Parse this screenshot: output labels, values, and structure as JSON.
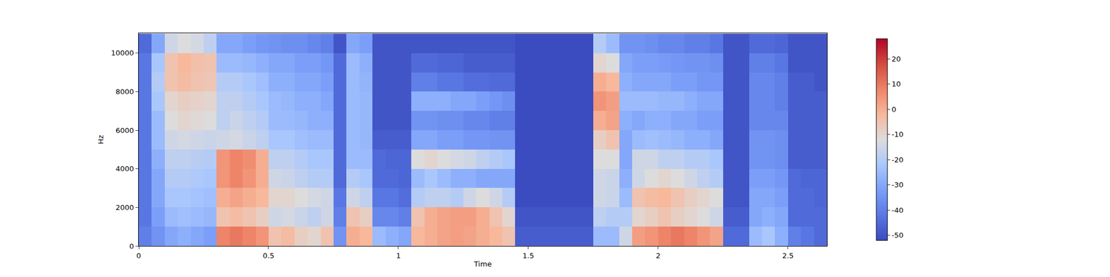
{
  "chart_data": {
    "type": "heatmap",
    "x_label": "Time",
    "y_label": "Hz",
    "xlim": [
      0,
      2.65
    ],
    "xticks": [
      0,
      0.5,
      1,
      1.5,
      2,
      2.5
    ],
    "ylim": [
      0,
      11025
    ],
    "yticks": [
      0,
      2000,
      4000,
      6000,
      8000,
      10000
    ],
    "colorbar": {
      "range": [
        -52,
        28
      ],
      "ticks": [
        -50,
        -40,
        -30,
        -20,
        -10,
        0,
        10,
        20
      ]
    },
    "x": [
      0.025,
      0.075,
      0.125,
      0.175,
      0.225,
      0.275,
      0.325,
      0.375,
      0.425,
      0.475,
      0.525,
      0.575,
      0.625,
      0.675,
      0.725,
      0.775,
      0.825,
      0.875,
      0.925,
      0.975,
      1.025,
      1.075,
      1.125,
      1.175,
      1.225,
      1.275,
      1.325,
      1.375,
      1.425,
      1.475,
      1.525,
      1.575,
      1.625,
      1.675,
      1.725,
      1.775,
      1.825,
      1.875,
      1.925,
      1.975,
      2.025,
      2.075,
      2.125,
      2.175,
      2.225,
      2.275,
      2.325,
      2.375,
      2.425,
      2.475,
      2.525,
      2.575,
      2.625
    ],
    "y": [
      500,
      1500,
      2500,
      3500,
      4500,
      5500,
      6500,
      7500,
      8500,
      9500,
      10500
    ],
    "z": [
      [
        -40,
        -35,
        -30,
        -28,
        -30,
        -32,
        8,
        10,
        8,
        5,
        -5,
        -3,
        -8,
        -10,
        -5,
        -35,
        0,
        -2,
        -25,
        -28,
        -30,
        -2,
        0,
        2,
        3,
        2,
        0,
        -2,
        -5,
        -48,
        -48,
        -48,
        -48,
        -48,
        -48,
        -25,
        -25,
        -15,
        3,
        5,
        8,
        10,
        8,
        5,
        2,
        -45,
        -45,
        -25,
        -22,
        -28,
        -40,
        -42,
        -45
      ],
      [
        -42,
        -32,
        -25,
        -24,
        -25,
        -26,
        -5,
        -3,
        -5,
        -8,
        -15,
        -14,
        -16,
        -18,
        -15,
        -40,
        -5,
        -8,
        -38,
        -38,
        -40,
        -5,
        0,
        2,
        3,
        3,
        0,
        -5,
        -10,
        -50,
        -50,
        -50,
        -50,
        -50,
        -50,
        -18,
        -20,
        -20,
        -10,
        -8,
        -5,
        -8,
        -10,
        -12,
        -15,
        -48,
        -48,
        -30,
        -28,
        -30,
        -45,
        -45,
        -45
      ],
      [
        -42,
        -30,
        -22,
        -22,
        -23,
        -24,
        0,
        2,
        0,
        -2,
        -10,
        -10,
        -12,
        -14,
        -15,
        -42,
        -15,
        -18,
        -42,
        -42,
        -44,
        -20,
        -18,
        -18,
        -20,
        -15,
        -12,
        -15,
        -20,
        -52,
        -52,
        -52,
        -52,
        -52,
        -52,
        -15,
        -16,
        -25,
        -5,
        -3,
        -2,
        -5,
        -8,
        -10,
        -12,
        -50,
        -50,
        -30,
        -30,
        -32,
        -45,
        -45,
        -46
      ],
      [
        -42,
        -30,
        -20,
        -20,
        -21,
        -22,
        5,
        8,
        5,
        0,
        -15,
        -16,
        -18,
        -20,
        -20,
        -45,
        -20,
        -22,
        -45,
        -45,
        -46,
        -25,
        -22,
        -25,
        -28,
        -28,
        -30,
        -30,
        -30,
        -52,
        -52,
        -52,
        -52,
        -52,
        -52,
        -15,
        -16,
        -28,
        -15,
        -12,
        -10,
        -12,
        -15,
        -18,
        -20,
        -50,
        -50,
        -32,
        -32,
        -34,
        -45,
        -46,
        -46
      ],
      [
        -42,
        -28,
        -18,
        -18,
        -19,
        -20,
        5,
        8,
        6,
        0,
        -18,
        -18,
        -20,
        -22,
        -22,
        -45,
        -25,
        -25,
        -45,
        -46,
        -46,
        -12,
        -10,
        -12,
        -14,
        -15,
        -18,
        -20,
        -22,
        -52,
        -52,
        -52,
        -52,
        -52,
        -52,
        -12,
        -12,
        -30,
        -15,
        -15,
        -18,
        -18,
        -20,
        -20,
        -22,
        -50,
        -50,
        -35,
        -35,
        -36,
        -48,
        -48,
        -48
      ],
      [
        -42,
        -25,
        -15,
        -14,
        -15,
        -16,
        -15,
        -14,
        -16,
        -18,
        -22,
        -22,
        -24,
        -25,
        -25,
        -45,
        -25,
        -26,
        -48,
        -48,
        -48,
        -30,
        -30,
        -32,
        -32,
        -34,
        -34,
        -35,
        -35,
        -52,
        -52,
        -52,
        -52,
        -52,
        -52,
        -8,
        -5,
        -30,
        -25,
        -24,
        -25,
        -26,
        -28,
        -28,
        -30,
        -50,
        -50,
        -35,
        -35,
        -36,
        -48,
        -48,
        -48
      ],
      [
        -42,
        -25,
        -12,
        -10,
        -11,
        -12,
        -18,
        -16,
        -18,
        -20,
        -25,
        -25,
        -26,
        -28,
        -28,
        -45,
        -25,
        -26,
        -50,
        -50,
        -50,
        -35,
        -35,
        -36,
        -36,
        -38,
        -38,
        -40,
        -40,
        -52,
        -52,
        -52,
        -52,
        -52,
        -52,
        0,
        2,
        -28,
        -30,
        -28,
        -28,
        -30,
        -30,
        -32,
        -32,
        -50,
        -50,
        -38,
        -38,
        -38,
        -48,
        -48,
        -48
      ],
      [
        -42,
        -22,
        -10,
        -8,
        -9,
        -10,
        -18,
        -18,
        -20,
        -22,
        -25,
        -26,
        -28,
        -28,
        -30,
        -45,
        -25,
        -26,
        -50,
        -50,
        -50,
        -28,
        -28,
        -28,
        -30,
        -30,
        -32,
        -34,
        -36,
        -52,
        -52,
        -52,
        -52,
        -52,
        -52,
        5,
        3,
        -25,
        -25,
        -25,
        -26,
        -26,
        -28,
        -30,
        -30,
        -50,
        -50,
        -38,
        -38,
        -40,
        -48,
        -48,
        -48
      ],
      [
        -42,
        -20,
        -5,
        -3,
        -5,
        -6,
        -20,
        -20,
        -22,
        -24,
        -28,
        -28,
        -30,
        -30,
        -32,
        -45,
        -25,
        -27,
        -50,
        -50,
        -50,
        -40,
        -40,
        -42,
        -42,
        -44,
        -44,
        -45,
        -45,
        -52,
        -52,
        -52,
        -52,
        -52,
        -52,
        0,
        -2,
        -28,
        -30,
        -30,
        -30,
        -32,
        -32,
        -34,
        -34,
        -50,
        -50,
        -38,
        -38,
        -40,
        -48,
        -48,
        -50
      ],
      [
        -42,
        -22,
        -5,
        -2,
        -4,
        -5,
        -25,
        -25,
        -26,
        -28,
        -30,
        -30,
        -32,
        -32,
        -34,
        -45,
        -25,
        -28,
        -50,
        -50,
        -50,
        -45,
        -45,
        -46,
        -46,
        -48,
        -48,
        -48,
        -48,
        -52,
        -52,
        -52,
        -52,
        -52,
        -52,
        -10,
        -12,
        -30,
        -32,
        -32,
        -33,
        -34,
        -35,
        -35,
        -36,
        -50,
        -50,
        -40,
        -40,
        -42,
        -50,
        -50,
        -50
      ],
      [
        -45,
        -30,
        -15,
        -12,
        -14,
        -18,
        -30,
        -30,
        -32,
        -34,
        -35,
        -36,
        -36,
        -38,
        -40,
        -50,
        -30,
        -32,
        -50,
        -50,
        -50,
        -50,
        -50,
        -50,
        -50,
        -50,
        -50,
        -50,
        -50,
        -52,
        -52,
        -52,
        -52,
        -52,
        -52,
        -20,
        -25,
        -35,
        -35,
        -36,
        -38,
        -38,
        -40,
        -40,
        -42,
        -50,
        -50,
        -45,
        -45,
        -46,
        -50,
        -50,
        -50
      ]
    ]
  }
}
